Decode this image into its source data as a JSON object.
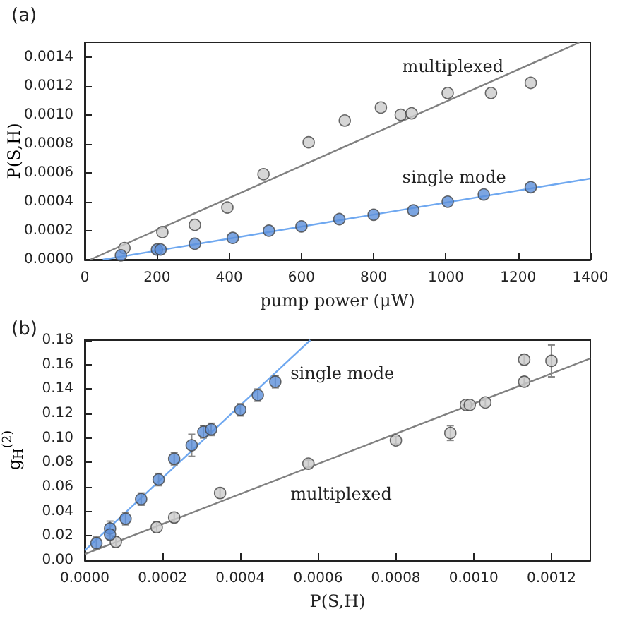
{
  "chart_data": [
    {
      "type": "scatter",
      "title": "(a)",
      "xlabel": "pump power (μW)",
      "ylabel": "P(S,H)",
      "xlim": [
        0,
        1400
      ],
      "xticks": [
        0,
        200,
        400,
        600,
        800,
        1000,
        1200,
        1400
      ],
      "ylim": [
        0,
        0.0015
      ],
      "yticks": [
        {
          "value": 0,
          "label": "0.0000"
        },
        {
          "value": 0.0002,
          "label": "0.0002"
        },
        {
          "value": 0.0004,
          "label": "0.0004"
        },
        {
          "value": 0.0006,
          "label": "0.0006"
        },
        {
          "value": 0.0008,
          "label": "0.0008"
        },
        {
          "value": 0.001,
          "label": "0.0010"
        },
        {
          "value": 0.0012,
          "label": "0.0012"
        },
        {
          "value": 0.0014,
          "label": "0.0014"
        }
      ],
      "grid": false,
      "marker": "circle",
      "annotations": [
        "multiplexed",
        "single mode"
      ],
      "series": [
        {
          "type": "line",
          "color": "#808080",
          "marker": "none",
          "x": [
            15,
            1370
          ],
          "values": [
            0,
            0.0015
          ]
        },
        {
          "type": "line",
          "color": "#6fa8f0",
          "marker": "none",
          "x": [
            50,
            1400
          ],
          "values": [
            0,
            0.00056
          ]
        },
        {
          "color": "#cccccc",
          "x": [
            110,
            215,
            305,
            395,
            495,
            620,
            720,
            820,
            875,
            905,
            1005,
            1125,
            1235
          ],
          "values": [
            8e-05,
            0.00019,
            0.00024,
            0.00036,
            0.00059,
            0.00081,
            0.00096,
            0.00105,
            0.001,
            0.00101,
            0.00115,
            0.00115,
            0.00122
          ]
        },
        {
          "color": "#5b8fd9",
          "x": [
            100,
            200,
            210,
            305,
            410,
            510,
            600,
            705,
            800,
            910,
            1005,
            1105,
            1235
          ],
          "values": [
            3e-05,
            7e-05,
            7e-05,
            0.00011,
            0.00015,
            0.0002,
            0.00023,
            0.00028,
            0.00031,
            0.00034,
            0.0004,
            0.00045,
            0.0005
          ]
        }
      ]
    },
    {
      "type": "scatter",
      "title": "(b)",
      "xlabel": "P(S,H)",
      "ylabel": "g$_{H}$$^{(2)}$",
      "xlim": [
        0,
        0.0013
      ],
      "xticks": [
        {
          "value": 0,
          "label": "0.0000"
        },
        {
          "value": 0.0002,
          "label": "0.0002"
        },
        {
          "value": 0.0004,
          "label": "0.0004"
        },
        {
          "value": 0.0006,
          "label": "0.0006"
        },
        {
          "value": 0.0008,
          "label": "0.0008"
        },
        {
          "value": 0.001,
          "label": "0.0010"
        },
        {
          "value": 0.0012,
          "label": "0.0012"
        }
      ],
      "ylim": [
        0,
        0.18
      ],
      "yticks": [
        {
          "value": 0,
          "label": "0.00"
        },
        {
          "value": 0.02,
          "label": "0.02"
        },
        {
          "value": 0.04,
          "label": "0.04"
        },
        {
          "value": 0.06,
          "label": "0.06"
        },
        {
          "value": 0.08,
          "label": "0.08"
        },
        {
          "value": 0.1,
          "label": "0.10"
        },
        {
          "value": 0.12,
          "label": "0.12"
        },
        {
          "value": 0.14,
          "label": "0.14"
        },
        {
          "value": 0.16,
          "label": "0.16"
        },
        {
          "value": 0.18,
          "label": "0.18"
        }
      ],
      "grid": false,
      "marker": "circle",
      "annotations": [
        "single mode",
        "multiplexed"
      ],
      "series": [
        {
          "type": "line",
          "color": "#808080",
          "marker": "none",
          "x": [
            0,
            0.0013
          ],
          "values": [
            0.005,
            0.165
          ]
        },
        {
          "type": "line",
          "color": "#6fa8f0",
          "marker": "none",
          "x": [
            0,
            0.00058
          ],
          "values": [
            0.008,
            0.18
          ]
        },
        {
          "color": "#cccccc",
          "x": [
            8e-05,
            0.000185,
            0.00023,
            0.000348,
            0.000575,
            0.0008,
            0.00094,
            0.00098,
            0.00099,
            0.00103,
            0.00113,
            0.00113,
            0.0012
          ],
          "values": [
            0.015,
            0.027,
            0.035,
            0.055,
            0.079,
            0.098,
            0.104,
            0.127,
            0.127,
            0.129,
            0.164,
            0.146,
            0.163
          ],
          "errors": [
            0.004,
            0.004,
            0.004,
            0.004,
            0.003,
            0.003,
            0.006,
            null,
            null,
            0.003,
            0.004,
            0.004,
            0.013
          ]
        },
        {
          "color": "#5b8fd9",
          "x": [
            3e-05,
            6.5e-05,
            6.5e-05,
            0.000105,
            0.000145,
            0.00019,
            0.00023,
            0.000275,
            0.000305,
            0.000325,
            0.0004,
            0.000445,
            0.00049
          ],
          "values": [
            0.014,
            0.026,
            0.021,
            0.034,
            0.05,
            0.066,
            0.083,
            0.094,
            0.105,
            0.107,
            0.123,
            0.135,
            0.146
          ],
          "errors": [
            0.005,
            0.006,
            0.004,
            0.005,
            0.005,
            0.005,
            0.005,
            0.009,
            0.005,
            0.005,
            0.005,
            0.005,
            0.005
          ]
        }
      ]
    }
  ]
}
